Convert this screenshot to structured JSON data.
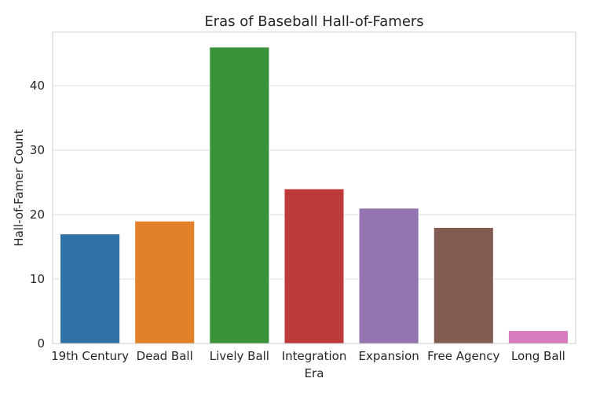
{
  "chart_data": {
    "type": "bar",
    "title": "Eras of Baseball Hall-of-Famers",
    "xlabel": "Era",
    "ylabel": "Hall-of-Famer Count",
    "categories": [
      "19th Century",
      "Dead Ball",
      "Lively Ball",
      "Integration",
      "Expansion",
      "Free Agency",
      "Long Ball"
    ],
    "values": [
      17,
      19,
      46,
      24,
      21,
      18,
      2
    ],
    "colors": [
      "#2f72a6",
      "#e3812b",
      "#3a933a",
      "#bf3b3b",
      "#9473b1",
      "#825b51",
      "#d97bbf"
    ],
    "ylim": [
      0,
      48.3
    ],
    "yticks": [
      0,
      10,
      20,
      30,
      40
    ],
    "grid": true,
    "legend": "none"
  }
}
